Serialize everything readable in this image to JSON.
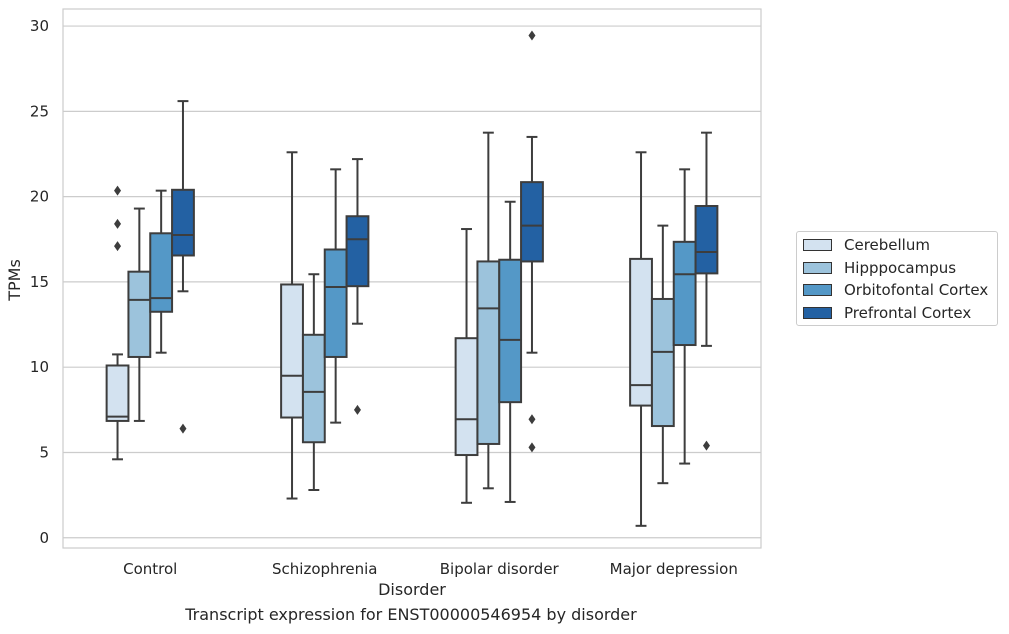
{
  "chart_data": {
    "type": "box",
    "title": "Transcript expression for ENST00000546954 by disorder",
    "xlabel": "Disorder",
    "ylabel": "TPMs",
    "ylim": [
      -0.6,
      31
    ],
    "yticks": [
      0,
      5,
      10,
      15,
      20,
      25,
      30
    ],
    "categories": [
      "Control",
      "Schizophrenia",
      "Bipolar disorder",
      "Major depression"
    ],
    "grid": "horizontal",
    "legend_position": "right",
    "series": [
      {
        "name": "Cerebellum",
        "color": "#d3e2f0",
        "boxes": [
          {
            "whislo": 4.6,
            "q1": 6.85,
            "med": 7.1,
            "q3": 10.1,
            "whishi": 10.75,
            "fliers": [
              17.1,
              18.4,
              20.35
            ]
          },
          {
            "whislo": 2.3,
            "q1": 7.05,
            "med": 9.5,
            "q3": 14.85,
            "whishi": 22.6,
            "fliers": []
          },
          {
            "whislo": 2.05,
            "q1": 4.85,
            "med": 6.95,
            "q3": 11.7,
            "whishi": 18.1,
            "fliers": []
          },
          {
            "whislo": 0.7,
            "q1": 7.75,
            "med": 8.95,
            "q3": 16.35,
            "whishi": 22.6,
            "fliers": []
          }
        ]
      },
      {
        "name": "Hipppocampus",
        "color": "#9cc3dc",
        "boxes": [
          {
            "whislo": 6.85,
            "q1": 10.6,
            "med": 13.95,
            "q3": 15.6,
            "whishi": 19.3,
            "fliers": []
          },
          {
            "whislo": 2.8,
            "q1": 5.6,
            "med": 8.55,
            "q3": 11.9,
            "whishi": 15.45,
            "fliers": []
          },
          {
            "whislo": 2.9,
            "q1": 5.5,
            "med": 13.45,
            "q3": 16.2,
            "whishi": 23.75,
            "fliers": []
          },
          {
            "whislo": 3.2,
            "q1": 6.55,
            "med": 10.9,
            "q3": 14.0,
            "whishi": 18.3,
            "fliers": []
          }
        ]
      },
      {
        "name": "Orbitofontal Cortex",
        "color": "#5498c7",
        "boxes": [
          {
            "whislo": 10.85,
            "q1": 13.25,
            "med": 14.05,
            "q3": 17.85,
            "whishi": 20.35,
            "fliers": []
          },
          {
            "whislo": 6.75,
            "q1": 10.6,
            "med": 14.7,
            "q3": 16.9,
            "whishi": 21.6,
            "fliers": []
          },
          {
            "whislo": 2.1,
            "q1": 7.95,
            "med": 11.6,
            "q3": 16.3,
            "whishi": 19.7,
            "fliers": []
          },
          {
            "whislo": 4.35,
            "q1": 11.3,
            "med": 15.45,
            "q3": 17.35,
            "whishi": 21.6,
            "fliers": []
          }
        ]
      },
      {
        "name": "Prefrontal Cortex",
        "color": "#2361a3",
        "boxes": [
          {
            "whislo": 14.45,
            "q1": 16.55,
            "med": 17.75,
            "q3": 20.4,
            "whishi": 25.6,
            "fliers": [
              6.4
            ]
          },
          {
            "whislo": 12.55,
            "q1": 14.75,
            "med": 17.5,
            "q3": 18.85,
            "whishi": 22.2,
            "fliers": [
              7.5
            ]
          },
          {
            "whislo": 10.85,
            "q1": 16.2,
            "med": 18.3,
            "q3": 20.85,
            "whishi": 23.5,
            "fliers": [
              5.3,
              6.95,
              29.45
            ]
          },
          {
            "whislo": 11.25,
            "q1": 15.5,
            "med": 16.75,
            "q3": 19.45,
            "whishi": 23.75,
            "fliers": [
              5.4
            ]
          }
        ]
      }
    ]
  }
}
